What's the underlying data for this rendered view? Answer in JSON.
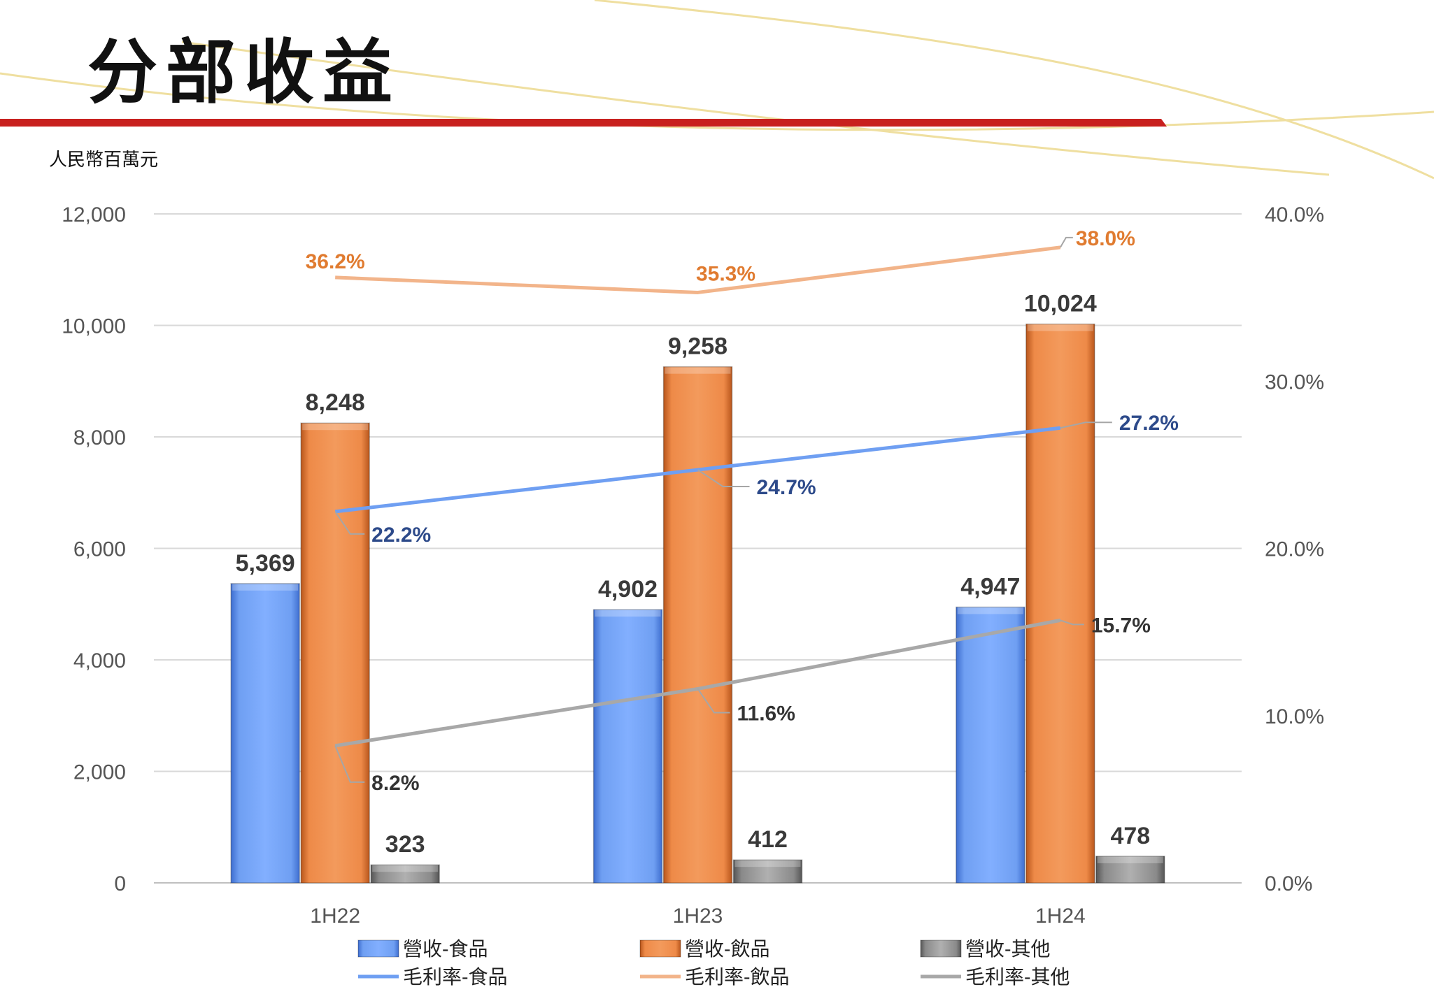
{
  "header": {
    "title": "分部收益"
  },
  "chart_data": {
    "type": "bar",
    "unit_label": "人民幣百萬元",
    "categories": [
      "1H22",
      "1H23",
      "1H24"
    ],
    "y_left": {
      "min": 0,
      "max": 12000,
      "ticks": [
        "0",
        "2,000",
        "4,000",
        "6,000",
        "8,000",
        "10,000",
        "12,000"
      ]
    },
    "y_right": {
      "min": 0,
      "max": 40,
      "ticks": [
        "0.0%",
        "10.0%",
        "20.0%",
        "30.0%",
        "40.0%"
      ]
    },
    "grid": true,
    "legend_position": "bottom",
    "bar_series": [
      {
        "name": "營收-食品",
        "values": [
          5369,
          4902,
          4947
        ],
        "labels": [
          "5,369",
          "4,902",
          "4,947"
        ],
        "color": "#6f9ff2"
      },
      {
        "name": "營收-飲品",
        "values": [
          8248,
          9258,
          10024
        ],
        "labels": [
          "8,248",
          "9,258",
          "10,024"
        ],
        "color": "#ee8a48"
      },
      {
        "name": "營收-其他",
        "values": [
          323,
          412,
          478
        ],
        "labels": [
          "323",
          "412",
          "478"
        ],
        "color": "#9a9a9a"
      }
    ],
    "line_series": [
      {
        "name": "毛利率-食品",
        "values": [
          22.2,
          24.7,
          27.2
        ],
        "labels": [
          "22.2%",
          "24.7%",
          "27.2%"
        ],
        "color": "#6f9ff2",
        "label_color": "#2d4a8a"
      },
      {
        "name": "毛利率-飲品",
        "values": [
          36.2,
          35.3,
          38.0
        ],
        "labels": [
          "36.2%",
          "35.3%",
          "38.0%"
        ],
        "color": "#f2b48a",
        "label_color": "#e07b30"
      },
      {
        "name": "毛利率-其他",
        "values": [
          8.2,
          11.6,
          15.7
        ],
        "labels": [
          "8.2%",
          "11.6%",
          "15.7%"
        ],
        "color": "#a8a8a8",
        "label_color": "#333333"
      }
    ]
  }
}
